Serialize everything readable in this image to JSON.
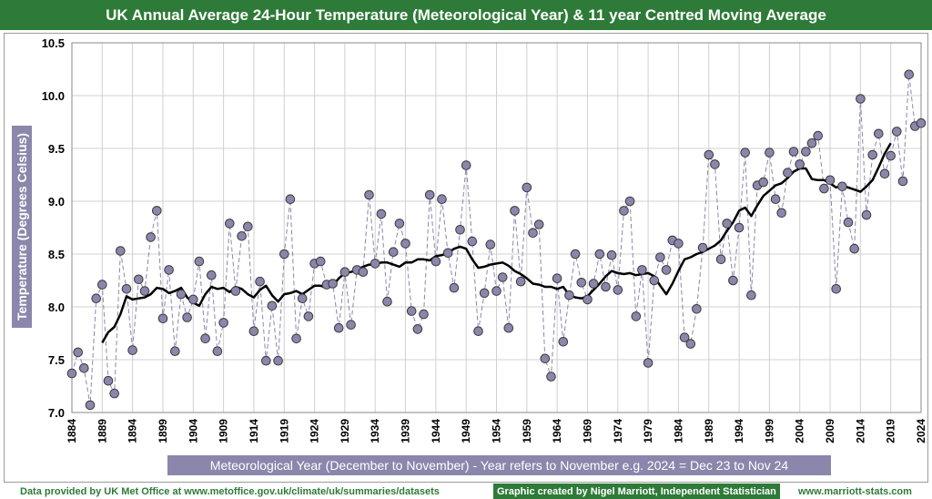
{
  "chart_data": {
    "type": "line",
    "title": "UK Annual Average 24-Hour Temperature (Meteorological Year) & 11 year Centred Moving Average",
    "xlabel": "Meteorological  Year (December to November) - Year refers to November e.g. 2024 = Dec 23 to Nov 24",
    "ylabel": "Temperature (Degrees Celsius)",
    "xlim": [
      1884,
      2024
    ],
    "ylim": [
      7.0,
      10.5
    ],
    "yticks": [
      "7.0",
      "7.5",
      "8.0",
      "8.5",
      "9.0",
      "9.5",
      "10.0",
      "10.5"
    ],
    "xticks": [
      "1884",
      "1889",
      "1894",
      "1899",
      "1904",
      "1909",
      "1914",
      "1919",
      "1924",
      "1929",
      "1934",
      "1939",
      "1944",
      "1949",
      "1954",
      "1959",
      "1964",
      "1969",
      "1974",
      "1979",
      "1984",
      "1989",
      "1994",
      "1999",
      "2004",
      "2009",
      "2014",
      "2019",
      "2024"
    ],
    "grid": true,
    "legend": "none",
    "series": [
      {
        "style": "dashed-markers",
        "color": "#8b86ab",
        "x": [
          1884,
          1885,
          1886,
          1887,
          1888,
          1889,
          1890,
          1891,
          1892,
          1893,
          1894,
          1895,
          1896,
          1897,
          1898,
          1899,
          1900,
          1901,
          1902,
          1903,
          1904,
          1905,
          1906,
          1907,
          1908,
          1909,
          1910,
          1911,
          1912,
          1913,
          1914,
          1915,
          1916,
          1917,
          1918,
          1919,
          1920,
          1921,
          1922,
          1923,
          1924,
          1925,
          1926,
          1927,
          1928,
          1929,
          1930,
          1931,
          1932,
          1933,
          1934,
          1935,
          1936,
          1937,
          1938,
          1939,
          1940,
          1941,
          1942,
          1943,
          1944,
          1945,
          1946,
          1947,
          1948,
          1949,
          1950,
          1951,
          1952,
          1953,
          1954,
          1955,
          1956,
          1957,
          1958,
          1959,
          1960,
          1961,
          1962,
          1963,
          1964,
          1965,
          1966,
          1967,
          1968,
          1969,
          1970,
          1971,
          1972,
          1973,
          1974,
          1975,
          1976,
          1977,
          1978,
          1979,
          1980,
          1981,
          1982,
          1983,
          1984,
          1985,
          1986,
          1987,
          1988,
          1989,
          1990,
          1991,
          1992,
          1993,
          1994,
          1995,
          1996,
          1997,
          1998,
          1999,
          2000,
          2001,
          2002,
          2003,
          2004,
          2005,
          2006,
          2007,
          2008,
          2009,
          2010,
          2011,
          2012,
          2013,
          2014,
          2015,
          2016,
          2017,
          2018,
          2019,
          2020,
          2021,
          2022,
          2023,
          2024
        ],
        "values": [
          7.37,
          7.57,
          7.42,
          7.07,
          8.08,
          8.21,
          7.3,
          7.18,
          8.53,
          8.17,
          7.59,
          8.26,
          8.15,
          8.66,
          8.91,
          7.89,
          8.35,
          7.58,
          8.12,
          7.9,
          8.07,
          8.43,
          7.7,
          8.3,
          7.58,
          7.85,
          8.79,
          8.15,
          8.67,
          8.76,
          7.77,
          8.24,
          7.49,
          8.01,
          7.49,
          8.5,
          9.02,
          7.7,
          8.08,
          7.91,
          8.41,
          8.43,
          8.21,
          8.22,
          7.8,
          8.33,
          7.83,
          8.35,
          8.33,
          9.06,
          8.41,
          8.88,
          8.05,
          8.52,
          8.79,
          8.6,
          7.96,
          7.79,
          7.93,
          9.06,
          8.43,
          9.02,
          8.51,
          8.18,
          8.73,
          9.34,
          8.62,
          7.77,
          8.13,
          8.59,
          8.15,
          8.28,
          7.8,
          8.91,
          8.24,
          9.13,
          8.7,
          8.78,
          7.51,
          7.34,
          8.27,
          7.67,
          8.11,
          8.5,
          8.23,
          8.07,
          8.22,
          8.5,
          8.19,
          8.49,
          8.16,
          8.91,
          9.0,
          7.91,
          8.35,
          7.47,
          8.25,
          8.47,
          8.35,
          8.63,
          8.6,
          7.71,
          7.65,
          7.98,
          8.56,
          9.44,
          9.35,
          8.45,
          8.79,
          8.25,
          8.75,
          9.46,
          8.11,
          9.15,
          9.18,
          9.46,
          9.02,
          8.89,
          9.27,
          9.47,
          9.35,
          9.47,
          9.55,
          9.62,
          9.12,
          9.2,
          8.17,
          9.14,
          8.8,
          8.55,
          9.97,
          8.87,
          9.44,
          9.64,
          9.26,
          9.43,
          9.66,
          9.19,
          10.2,
          9.71,
          9.74
        ]
      },
      {
        "style": "solid",
        "color": "#000000",
        "x": [
          1889,
          1890,
          1891,
          1892,
          1893,
          1894,
          1895,
          1896,
          1897,
          1898,
          1899,
          1900,
          1901,
          1902,
          1903,
          1904,
          1905,
          1906,
          1907,
          1908,
          1909,
          1910,
          1911,
          1912,
          1913,
          1914,
          1915,
          1916,
          1917,
          1918,
          1919,
          1920,
          1921,
          1922,
          1923,
          1924,
          1925,
          1926,
          1927,
          1928,
          1929,
          1930,
          1931,
          1932,
          1933,
          1934,
          1935,
          1936,
          1937,
          1938,
          1939,
          1940,
          1941,
          1942,
          1943,
          1944,
          1945,
          1946,
          1947,
          1948,
          1949,
          1950,
          1951,
          1952,
          1953,
          1954,
          1955,
          1956,
          1957,
          1958,
          1959,
          1960,
          1961,
          1962,
          1963,
          1964,
          1965,
          1966,
          1967,
          1968,
          1969,
          1970,
          1971,
          1972,
          1973,
          1974,
          1975,
          1976,
          1977,
          1978,
          1979,
          1980,
          1981,
          1982,
          1983,
          1984,
          1985,
          1986,
          1987,
          1988,
          1989,
          1990,
          1991,
          1992,
          1993,
          1994,
          1995,
          1996,
          1997,
          1998,
          1999,
          2000,
          2001,
          2002,
          2003,
          2004,
          2005,
          2006,
          2007,
          2008,
          2009,
          2010,
          2011,
          2012,
          2013,
          2014,
          2015,
          2016,
          2017,
          2018,
          2019
        ],
        "values": [
          7.66,
          7.76,
          7.81,
          7.93,
          8.1,
          8.07,
          8.08,
          8.09,
          8.12,
          8.18,
          8.17,
          8.13,
          8.15,
          8.18,
          8.09,
          8.04,
          8.01,
          8.12,
          8.19,
          8.17,
          8.18,
          8.14,
          8.19,
          8.17,
          8.12,
          8.09,
          8.16,
          8.2,
          8.11,
          8.05,
          8.12,
          8.13,
          8.15,
          8.12,
          8.16,
          8.2,
          8.2,
          8.18,
          8.2,
          8.27,
          8.32,
          8.33,
          8.35,
          8.38,
          8.4,
          8.4,
          8.42,
          8.42,
          8.4,
          8.38,
          8.42,
          8.42,
          8.45,
          8.45,
          8.44,
          8.48,
          8.49,
          8.51,
          8.55,
          8.57,
          8.55,
          8.45,
          8.37,
          8.38,
          8.4,
          8.41,
          8.42,
          8.39,
          8.34,
          8.31,
          8.27,
          8.22,
          8.21,
          8.19,
          8.19,
          8.17,
          8.19,
          8.11,
          8.09,
          8.08,
          8.1,
          8.16,
          8.22,
          8.29,
          8.34,
          8.32,
          8.31,
          8.32,
          8.3,
          8.31,
          8.32,
          8.29,
          8.2,
          8.12,
          8.22,
          8.34,
          8.45,
          8.47,
          8.5,
          8.52,
          8.55,
          8.58,
          8.63,
          8.72,
          8.8,
          8.91,
          8.94,
          8.86,
          8.96,
          9.05,
          9.1,
          9.15,
          9.17,
          9.22,
          9.28,
          9.31,
          9.31,
          9.21,
          9.2,
          9.2,
          9.17,
          9.13,
          9.15,
          9.13,
          9.11,
          9.09,
          9.14,
          9.2,
          9.32,
          9.45,
          9.55
        ]
      }
    ]
  },
  "footer": {
    "data_source": "Data provided by UK Met Office at www.metoffice.gov.uk/climate/uk/summaries/datasets",
    "credit": "Graphic created by Nigel Marriott, Independent Statistician",
    "website": "www.marriott-stats.com"
  }
}
